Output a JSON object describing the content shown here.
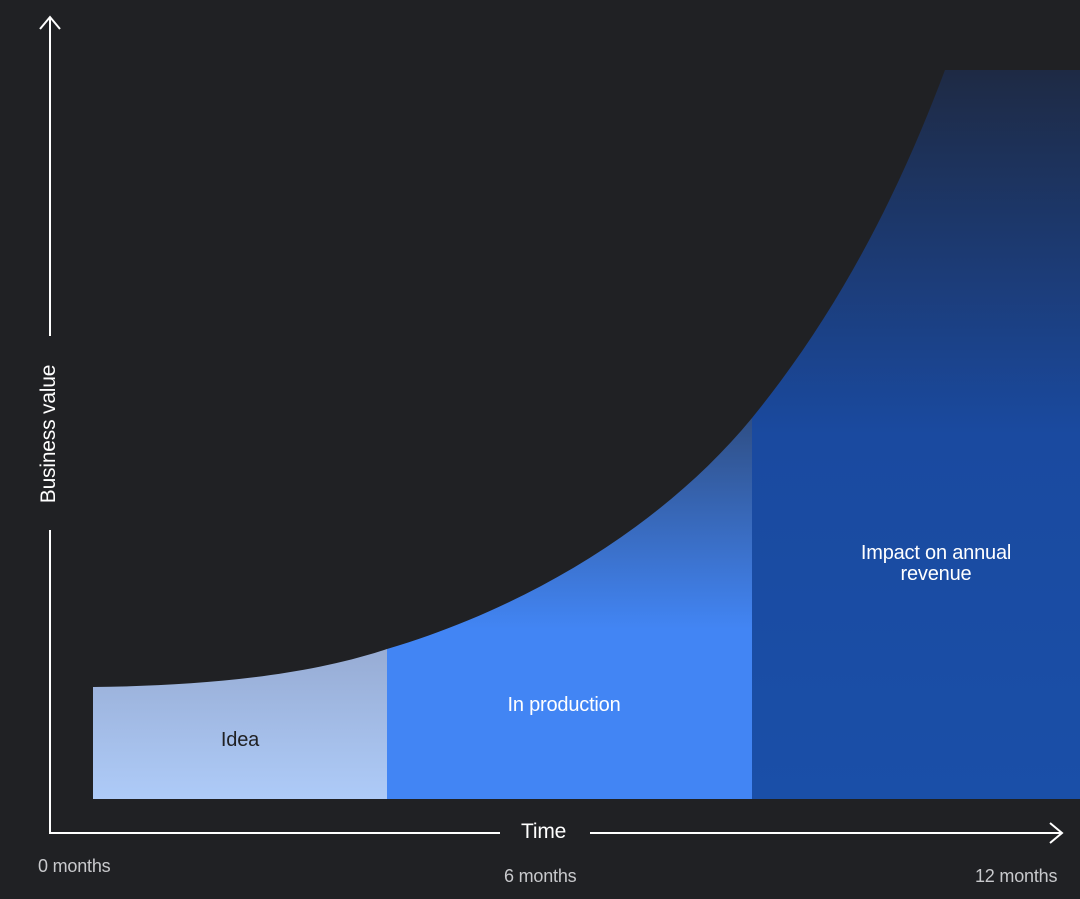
{
  "diagram": {
    "y_axis_label": "Business value",
    "x_axis_label": "Time",
    "x_ticks": [
      "0 months",
      "6 months",
      "12 months"
    ],
    "stages": [
      {
        "label": "Idea",
        "color": "#a8c7fa"
      },
      {
        "label": "In production",
        "color": "#4285f4"
      },
      {
        "label": "Impact on annual revenue",
        "color": "#1a4fa8"
      }
    ],
    "colors": {
      "background": "#202124",
      "axis": "#ffffff",
      "idea_fill": "#a8c7fa",
      "production_fill": "#4285f4",
      "impact_fill": "#1a4fa8"
    }
  }
}
